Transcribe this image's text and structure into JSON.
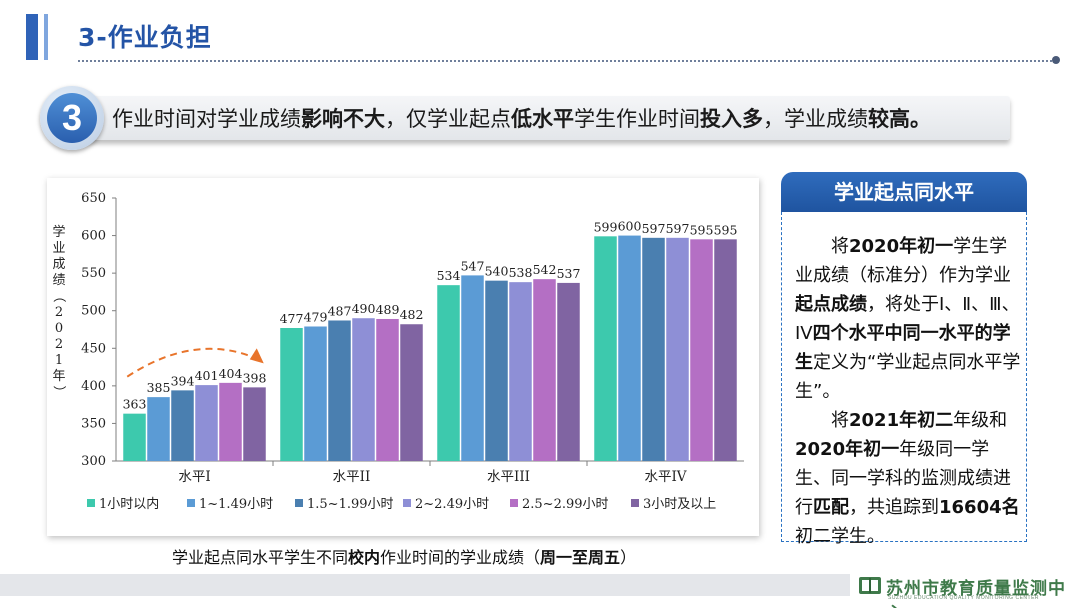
{
  "header": {
    "title": "3-作业负担"
  },
  "banner": {
    "number": "3",
    "segments": [
      {
        "text": "作业时间对学业成绩",
        "bold": false
      },
      {
        "text": "影响不大",
        "bold": true
      },
      {
        "text": "，仅学业起点",
        "bold": false
      },
      {
        "text": "低水平",
        "bold": true
      },
      {
        "text": "学生作业时间",
        "bold": false
      },
      {
        "text": "投入多",
        "bold": true
      },
      {
        "text": "，学业成绩",
        "bold": false
      },
      {
        "text": "较高。",
        "bold": true
      }
    ]
  },
  "chart_data": {
    "type": "bar",
    "title": "",
    "ylabel": "学业成绩（2021年）",
    "ylim": [
      300,
      650
    ],
    "yticks": [
      300,
      350,
      400,
      450,
      500,
      550,
      600,
      650
    ],
    "grid": false,
    "legend_position": "bottom",
    "categories": [
      "水平I",
      "水平II",
      "水平III",
      "水平IV"
    ],
    "series": [
      {
        "name": "1小时以内",
        "color": "#3dc9ad",
        "values": [
          363,
          477,
          534,
          599
        ]
      },
      {
        "name": "1~1.49小时",
        "color": "#5b9bd5",
        "values": [
          385,
          479,
          547,
          600
        ]
      },
      {
        "name": "1.5~1.99小时",
        "color": "#4a7fb0",
        "values": [
          394,
          487,
          540,
          597
        ]
      },
      {
        "name": "2~2.49小时",
        "color": "#8e8fd6",
        "values": [
          401,
          490,
          538,
          597
        ]
      },
      {
        "name": "2.5~2.99小时",
        "color": "#b46fc4",
        "values": [
          404,
          489,
          542,
          595
        ]
      },
      {
        "name": "3小时及以上",
        "color": "#8064a2",
        "values": [
          398,
          482,
          537,
          595
        ]
      }
    ],
    "annotation_arrow_color": "#e8742b"
  },
  "caption": {
    "segments": [
      {
        "text": "学业起点同水平学生不同",
        "bold": false
      },
      {
        "text": "校内",
        "bold": true
      },
      {
        "text": "作业时间的学业成绩（",
        "bold": false
      },
      {
        "text": "周一至周五",
        "bold": true
      },
      {
        "text": "）",
        "bold": false
      }
    ]
  },
  "sidebar": {
    "title": "学业起点同水平",
    "paragraph1": [
      {
        "text": "将",
        "bold": false
      },
      {
        "text": "2020年初一",
        "bold": true
      },
      {
        "text": "学生学业成绩（标准分）作为学业",
        "bold": false
      },
      {
        "text": "起点成绩",
        "bold": true
      },
      {
        "text": "，将处于Ⅰ、Ⅱ、Ⅲ、ⅠV",
        "bold": false
      },
      {
        "text": "四个水平中同一水平的学生",
        "bold": true
      },
      {
        "text": "定义为“学业起点同水平学生”。",
        "bold": false
      }
    ],
    "paragraph2": [
      {
        "text": "将",
        "bold": false
      },
      {
        "text": "2021年初二",
        "bold": true
      },
      {
        "text": "年级和",
        "bold": false
      },
      {
        "text": "2020年初一",
        "bold": true
      },
      {
        "text": "年级同一学生、同一学科的监测成绩进行",
        "bold": false
      },
      {
        "text": "匹配",
        "bold": true
      },
      {
        "text": "，共追踪到",
        "bold": false
      },
      {
        "text": "16604名",
        "bold": true
      },
      {
        "text": "初二学生。",
        "bold": false
      }
    ]
  },
  "footer": {
    "org_name": "苏州市教育质量监测中心",
    "org_name_en": "SUZHOU EDUCATION QUALITY MONITORING CENTER",
    "logo_color": "#3f7a4a"
  }
}
